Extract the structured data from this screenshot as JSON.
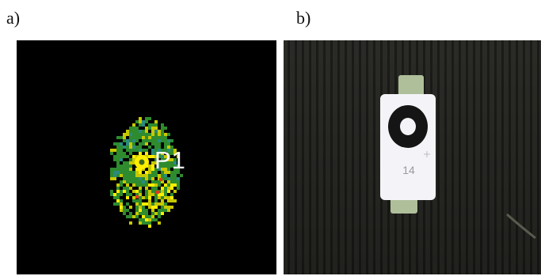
{
  "figure": {
    "panels": [
      {
        "label": "a)",
        "point_label": "P1"
      },
      {
        "label": "b)",
        "tag_number": "14"
      }
    ]
  },
  "colors": {
    "heat_background": "#000000",
    "heat_low": "#2e8b2e",
    "heat_mid": "#c8c800",
    "heat_high": "#ffee00",
    "heat_alt": "#2a8a80",
    "photo_background": "#2f2f2b",
    "tag_face": "#f4f4f8",
    "tape": "#aebf9a"
  }
}
